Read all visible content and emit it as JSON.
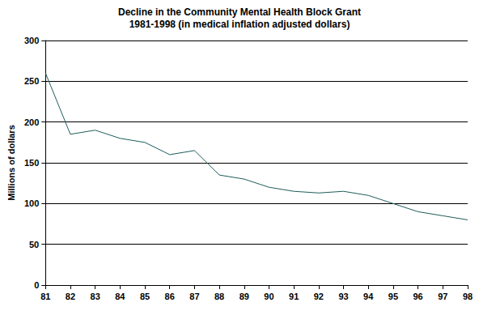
{
  "chart_data": {
    "type": "line",
    "title": "Decline in the Community Mental Health Block Grant",
    "subtitle": "1981-1998 (in medical inflation adjusted dollars)",
    "y_label": "Millions of dollars",
    "categories": [
      "81",
      "82",
      "83",
      "84",
      "85",
      "86",
      "87",
      "88",
      "89",
      "90",
      "91",
      "92",
      "93",
      "94",
      "95",
      "96",
      "97",
      "98"
    ],
    "values": [
      260,
      185,
      190,
      180,
      175,
      160,
      165,
      135,
      130,
      120,
      115,
      113,
      115,
      110,
      100,
      90,
      85,
      80
    ],
    "color": "#1f5c5c",
    "ylim": [
      0,
      300
    ],
    "yticks": [
      0,
      50,
      100,
      150,
      200,
      250,
      300
    ],
    "grid": true
  }
}
